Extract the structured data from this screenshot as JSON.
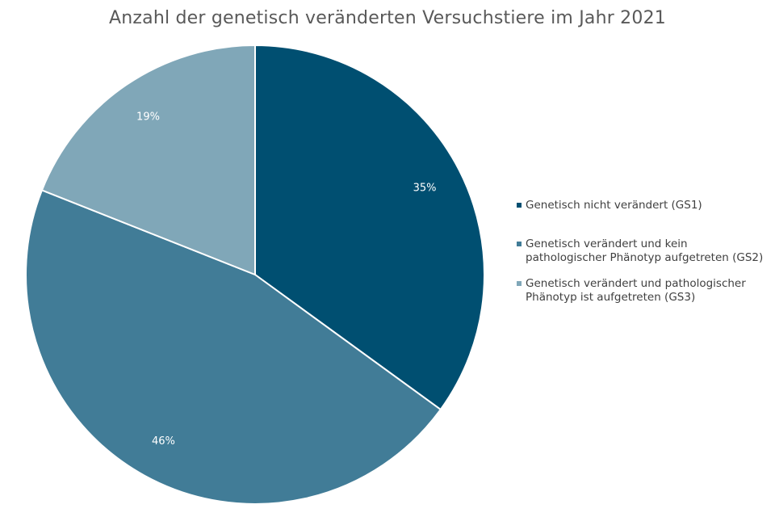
{
  "chart_data": {
    "type": "pie",
    "title": "Anzahl der genetisch veränderten Versuchstiere im Jahr 2021",
    "legend_position": "right",
    "categories": [
      "Genetisch nicht verändert (GS1)",
      "Genetisch verändert und kein pathologischer Phänotyp aufgetreten (GS2)",
      "Genetisch verändert und pathologischer Phänotyp ist aufgetreten (GS3)"
    ],
    "values": [
      35,
      46,
      19
    ],
    "data_labels": [
      "35%",
      "46%",
      "19%"
    ],
    "colors": [
      "#004f71",
      "#417c97",
      "#80a7b8"
    ]
  }
}
